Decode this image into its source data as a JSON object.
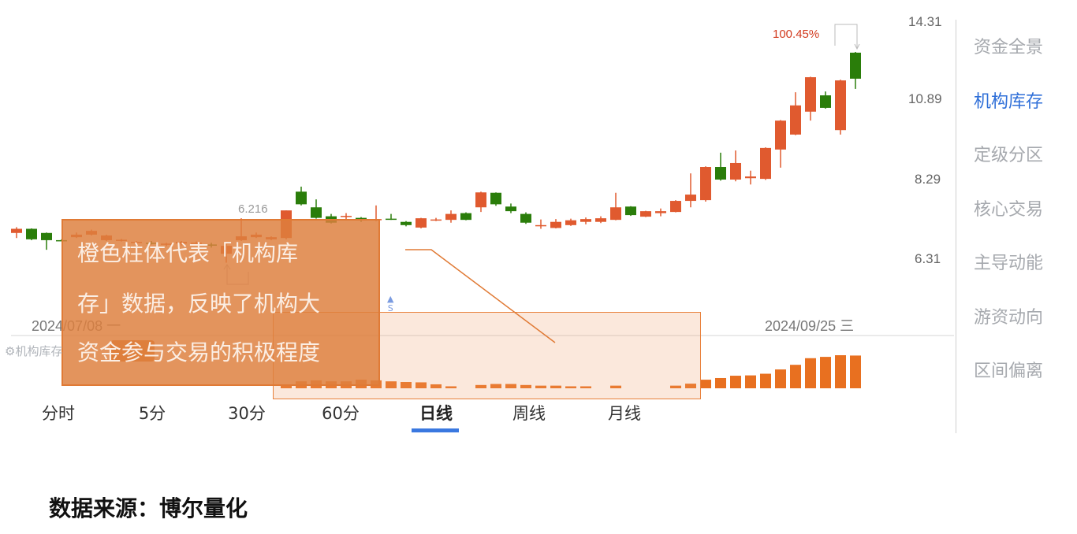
{
  "chart_data": {
    "type": "candlestick",
    "price_axis": {
      "scale": "log",
      "ticks": [
        14.31,
        10.89,
        8.29,
        6.31
      ],
      "position": "right"
    },
    "date_range": {
      "start": "2024/07/08 一",
      "end": "2024/09/25 三"
    },
    "up_color": "#e05a2f",
    "down_color": "#2a7d0a",
    "candles_ohlc": [
      [
        6.89,
        7.03,
        6.77,
        6.99
      ],
      [
        6.99,
        7.0,
        6.72,
        6.74
      ],
      [
        6.89,
        6.9,
        6.5,
        6.72
      ],
      [
        6.72,
        6.74,
        6.7,
        6.72
      ],
      [
        6.79,
        6.9,
        6.77,
        6.85
      ],
      [
        6.85,
        6.97,
        6.83,
        6.94
      ],
      [
        6.72,
        6.85,
        6.7,
        6.83
      ],
      [
        6.72,
        6.75,
        6.69,
        6.73
      ],
      [
        6.66,
        6.7,
        6.62,
        6.68
      ],
      [
        6.66,
        6.7,
        6.62,
        6.64
      ],
      [
        6.62,
        6.66,
        6.58,
        6.64
      ],
      [
        6.64,
        6.7,
        6.6,
        6.68
      ],
      [
        6.65,
        6.69,
        6.61,
        6.66
      ],
      [
        6.62,
        6.66,
        6.55,
        6.6
      ],
      [
        6.41,
        6.63,
        6.216,
        6.59
      ],
      [
        6.72,
        7.25,
        6.7,
        6.81
      ],
      [
        6.79,
        6.9,
        6.77,
        6.85
      ],
      [
        6.74,
        6.81,
        6.72,
        6.79
      ],
      [
        6.77,
        7.45,
        6.74,
        7.45
      ],
      [
        7.95,
        8.09,
        7.58,
        7.61
      ],
      [
        7.53,
        7.74,
        7.24,
        7.26
      ],
      [
        7.3,
        7.36,
        7.12,
        7.14
      ],
      [
        7.29,
        7.38,
        7.2,
        7.31
      ],
      [
        7.26,
        7.28,
        7.16,
        7.23
      ],
      [
        7.2,
        7.58,
        7.18,
        7.23
      ],
      [
        7.24,
        7.36,
        7.21,
        7.23
      ],
      [
        7.16,
        7.18,
        7.05,
        7.08
      ],
      [
        7.02,
        7.26,
        7.0,
        7.25
      ],
      [
        7.2,
        7.26,
        7.18,
        7.22
      ],
      [
        7.21,
        7.45,
        7.14,
        7.36
      ],
      [
        7.38,
        7.4,
        7.2,
        7.21
      ],
      [
        7.53,
        7.95,
        7.41,
        7.93
      ],
      [
        7.92,
        7.93,
        7.57,
        7.61
      ],
      [
        7.55,
        7.63,
        7.38,
        7.43
      ],
      [
        7.36,
        7.4,
        7.11,
        7.14
      ],
      [
        7.07,
        7.22,
        6.99,
        7.08
      ],
      [
        7.01,
        7.23,
        7.0,
        7.16
      ],
      [
        7.08,
        7.24,
        7.06,
        7.2
      ],
      [
        7.16,
        7.27,
        7.1,
        7.23
      ],
      [
        7.16,
        7.3,
        7.13,
        7.25
      ],
      [
        7.21,
        7.92,
        7.2,
        7.53
      ],
      [
        7.55,
        7.56,
        7.31,
        7.33
      ],
      [
        7.29,
        7.44,
        7.28,
        7.43
      ],
      [
        7.38,
        7.5,
        7.3,
        7.43
      ],
      [
        7.41,
        7.72,
        7.4,
        7.7
      ],
      [
        7.7,
        8.47,
        7.53,
        7.87
      ],
      [
        7.72,
        8.68,
        7.68,
        8.66
      ],
      [
        8.66,
        9.1,
        8.26,
        8.29
      ],
      [
        8.29,
        9.17,
        8.24,
        8.78
      ],
      [
        8.33,
        8.55,
        8.15,
        8.38
      ],
      [
        8.31,
        9.27,
        8.28,
        9.25
      ],
      [
        9.2,
        10.19,
        8.64,
        10.17
      ],
      [
        9.69,
        11.22,
        9.67,
        10.72
      ],
      [
        10.49,
        11.84,
        10.17,
        11.82
      ],
      [
        11.1,
        11.25,
        10.6,
        10.63
      ],
      [
        9.84,
        11.72,
        9.69,
        11.69
      ],
      [
        12.87,
        12.9,
        11.35,
        11.76
      ]
    ],
    "low_annotation": "6.216",
    "high_annotation": "100.45%",
    "signal_marker": "S",
    "indicator": {
      "name": "机构库存",
      "color": "#e87020",
      "relative_values": [
        null,
        null,
        null,
        null,
        null,
        null,
        null,
        null,
        null,
        null,
        null,
        null,
        null,
        null,
        null,
        null,
        null,
        null,
        10,
        21,
        24,
        21,
        21,
        26,
        24,
        21,
        19,
        18,
        12,
        6,
        0,
        10,
        13,
        13,
        10,
        8,
        8,
        6,
        6,
        0,
        8,
        0,
        0,
        0,
        8,
        14,
        26,
        31,
        38,
        39,
        44,
        57,
        71,
        91,
        95,
        100,
        99
      ]
    }
  },
  "sidebar": {
    "items": [
      {
        "label": "资金全景",
        "active": false
      },
      {
        "label": "机构库存",
        "active": true
      },
      {
        "label": "定级分区",
        "active": false
      },
      {
        "label": "核心交易",
        "active": false
      },
      {
        "label": "主导动能",
        "active": false
      },
      {
        "label": "游资动向",
        "active": false
      },
      {
        "label": "区间偏离",
        "active": false
      }
    ],
    "active_color": "#2f6fd8"
  },
  "timeframe_tabs": [
    {
      "label": "分时"
    },
    {
      "label": "5分"
    },
    {
      "label": "30分"
    },
    {
      "label": "60分"
    },
    {
      "label": "日线",
      "active": true
    },
    {
      "label": "周线"
    },
    {
      "label": "月线"
    }
  ],
  "indicator_label": "机构库存",
  "callout": {
    "lines": [
      "橙色柱体代表「机构库",
      "存」数据，反映了机构大",
      "资金参与交易的积极程度"
    ]
  },
  "footer": {
    "source": "数据来源：博尔量化"
  }
}
